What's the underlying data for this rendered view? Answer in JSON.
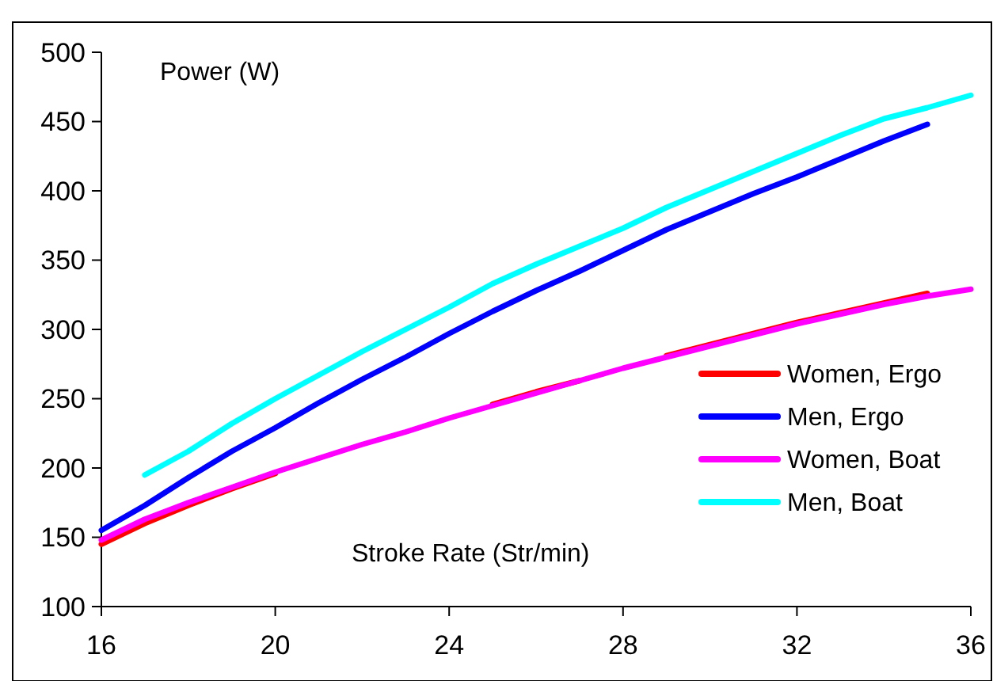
{
  "chart_data": {
    "type": "line",
    "xlabel": "Stroke Rate (Str/min)",
    "ylabel": "Power (W)",
    "xlim": [
      16,
      36
    ],
    "xticks": [
      16,
      20,
      24,
      28,
      32,
      36
    ],
    "ylim": [
      100,
      500
    ],
    "yticks": [
      100,
      150,
      200,
      250,
      300,
      350,
      400,
      450,
      500
    ],
    "grid": false,
    "legend": "right",
    "marker": "none",
    "line_style": "solid",
    "x": [
      16,
      17,
      18,
      19,
      20,
      21,
      22,
      23,
      24,
      25,
      26,
      27,
      28,
      29,
      30,
      31,
      32,
      33,
      34,
      35,
      36
    ],
    "series": [
      {
        "name": "Women, Ergo",
        "color": "#ff0000",
        "values": [
          145,
          160,
          173,
          185,
          196,
          null,
          null,
          null,
          null,
          246,
          255,
          263,
          null,
          281,
          289,
          297,
          305,
          312,
          319,
          326,
          null
        ]
      },
      {
        "name": "Men, Ergo",
        "color": "#0000ff",
        "values": [
          155,
          173,
          193,
          212,
          229,
          247,
          264,
          280,
          297,
          313,
          328,
          342,
          357,
          372,
          385,
          398,
          410,
          423,
          436,
          448,
          null
        ]
      },
      {
        "name": "Women, Boat",
        "color": "#ff00ff",
        "values": [
          148,
          163,
          175,
          186,
          197,
          207,
          217,
          226,
          236,
          245,
          254,
          263,
          272,
          280,
          288,
          296,
          304,
          311,
          318,
          324,
          329
        ]
      },
      {
        "name": "Men, Boat",
        "color": "#00ffff",
        "values": [
          null,
          195,
          212,
          232,
          250,
          267,
          284,
          300,
          316,
          333,
          347,
          360,
          373,
          388,
          401,
          414,
          427,
          440,
          452,
          460,
          469
        ]
      }
    ]
  }
}
